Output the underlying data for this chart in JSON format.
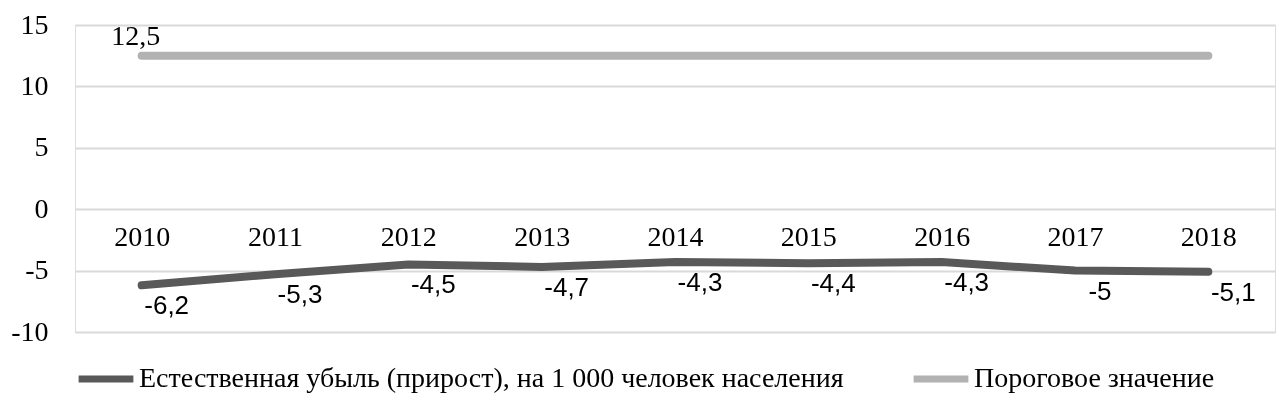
{
  "chart_data": {
    "type": "line",
    "categories": [
      "2010",
      "2011",
      "2012",
      "2013",
      "2014",
      "2015",
      "2016",
      "2017",
      "2018"
    ],
    "series": [
      {
        "name": "Естественная убыль (прирост), на 1 000 человек населения",
        "color": "#595959",
        "values": [
          -6.2,
          -5.3,
          -4.5,
          -4.7,
          -4.3,
          -4.4,
          -4.3,
          -5,
          -5.1
        ],
        "value_labels": [
          "-6,2",
          "-5,3",
          "-4,5",
          "-4,7",
          "-4,3",
          "-4,4",
          "-4,3",
          "-5",
          "-5,1"
        ]
      },
      {
        "name": "Пороговое значение",
        "color": "#b2b2b2",
        "values": [
          12.5,
          12.5,
          12.5,
          12.5,
          12.5,
          12.5,
          12.5,
          12.5,
          12.5
        ],
        "value_labels": [
          "12,5",
          null,
          null,
          null,
          null,
          null,
          null,
          null,
          null
        ]
      }
    ],
    "ylim": [
      -10,
      15
    ],
    "yticks": [
      -10,
      -5,
      0,
      5,
      10,
      15
    ],
    "grid": "y",
    "legend": "bottom",
    "line_style": "solid"
  }
}
